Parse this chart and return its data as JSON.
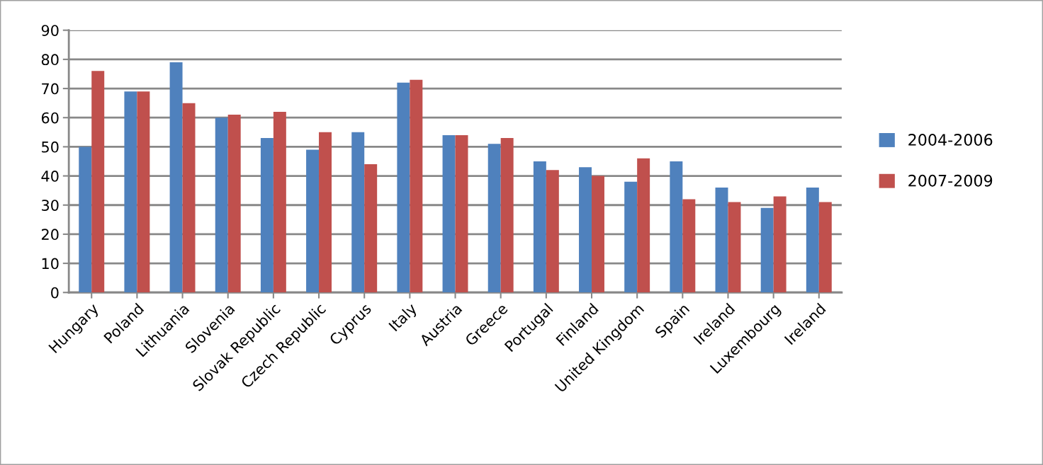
{
  "chart_data": {
    "type": "bar",
    "categories": [
      "Hungary",
      "Poland",
      "Lithuania",
      "Slovenia",
      "Slovak Republic",
      "Czech Republic",
      "Cyprus",
      "Italy",
      "Austria",
      "Greece",
      "Portugal",
      "Finland",
      "United Kingdom",
      "Spain",
      "Ireland",
      "Luxembourg",
      "Ireland"
    ],
    "series": [
      {
        "name": "2004-2006",
        "color": "#4f81bd",
        "values": [
          50,
          69,
          79,
          60,
          53,
          49,
          55,
          72,
          54,
          51,
          45,
          43,
          38,
          45,
          36,
          29,
          36
        ]
      },
      {
        "name": "2007-2009",
        "color": "#c0504d",
        "values": [
          76,
          69,
          65,
          61,
          62,
          55,
          44,
          73,
          54,
          53,
          42,
          40,
          46,
          32,
          31,
          33,
          31
        ]
      }
    ],
    "ylim": [
      0,
      90
    ],
    "yticks": [
      0,
      10,
      20,
      30,
      40,
      50,
      60,
      70,
      80,
      90
    ],
    "grid": "y",
    "legend": "right"
  }
}
